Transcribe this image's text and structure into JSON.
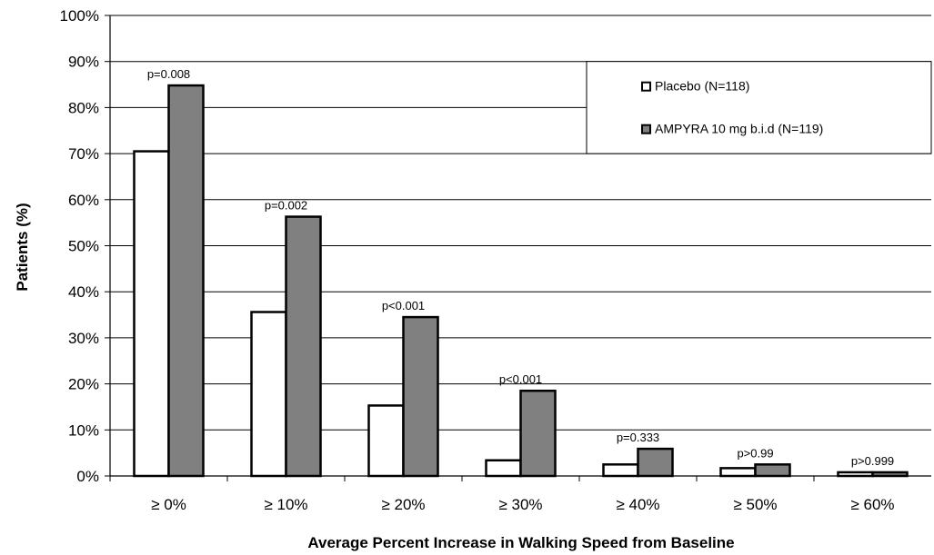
{
  "chart_data": {
    "type": "bar",
    "title": "",
    "xlabel": "Average Percent Increase in Walking Speed from Baseline",
    "ylabel": "Patients (%)",
    "ylim": [
      0,
      100
    ],
    "yticks": [
      "0%",
      "10%",
      "20%",
      "30%",
      "40%",
      "50%",
      "60%",
      "70%",
      "80%",
      "90%",
      "100%"
    ],
    "categories": [
      "≥ 0%",
      "≥ 10%",
      "≥ 20%",
      "≥ 30%",
      "≥ 40%",
      "≥ 50%",
      "≥ 60%"
    ],
    "series": [
      {
        "name": "Placebo (N=118)",
        "color": "#ffffff",
        "values": [
          70.5,
          35.6,
          15.3,
          3.4,
          2.5,
          1.7,
          0.8
        ]
      },
      {
        "name": "AMPYRA 10 mg b.i.d (N=119)",
        "color": "#808080",
        "values": [
          84.8,
          56.3,
          34.5,
          18.5,
          5.9,
          2.5,
          0.8
        ]
      }
    ],
    "p_values": [
      "p=0.008",
      "p=0.002",
      "p<0.001",
      "p<0.001",
      "p=0.333",
      "p>0.99",
      "p>0.999"
    ],
    "legend_position": "top-right",
    "grid": true
  }
}
